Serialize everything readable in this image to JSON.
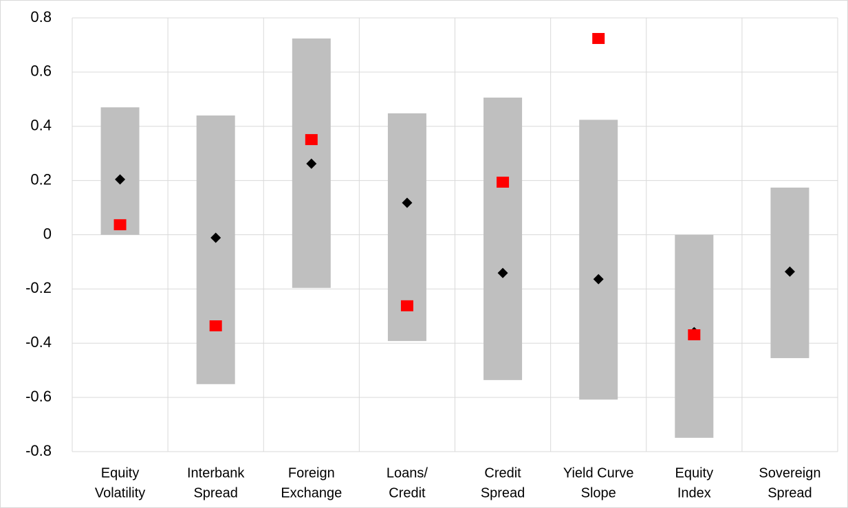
{
  "chart_data": {
    "type": "range",
    "categories": [
      [
        "Equity",
        "Volatility"
      ],
      [
        "Interbank",
        "Spread"
      ],
      [
        "Foreign",
        "Exchange"
      ],
      [
        "Loans/",
        "Credit"
      ],
      [
        "Credit",
        "Spread"
      ],
      [
        "Yield Curve",
        "Slope"
      ],
      [
        "Equity",
        "Index"
      ],
      [
        "Sovereign",
        "Spread"
      ]
    ],
    "low": [
      0,
      -0.551,
      -0.196,
      -0.392,
      -0.536,
      -0.608,
      -0.749,
      -0.455
    ],
    "high": [
      0.47,
      0.44,
      0.724,
      0.448,
      0.506,
      0.424,
      0,
      0.174
    ],
    "range_color": "#bfbfbf",
    "series": [
      {
        "marker": "diamond",
        "color": "#000000",
        "values": [
          0.204,
          -0.011,
          0.262,
          0.118,
          -0.141,
          -0.164,
          -0.359,
          -0.136
        ]
      },
      {
        "marker": "square",
        "color": "#ff0000",
        "values": [
          0.037,
          -0.336,
          0.351,
          -0.262,
          0.194,
          0.724,
          -0.369,
          null
        ]
      }
    ],
    "ylim": [
      -0.8,
      0.8
    ],
    "yticks": [
      -0.8,
      -0.6,
      -0.4,
      -0.2,
      0,
      0.2,
      0.4,
      0.6,
      0.8
    ],
    "grid": true
  }
}
